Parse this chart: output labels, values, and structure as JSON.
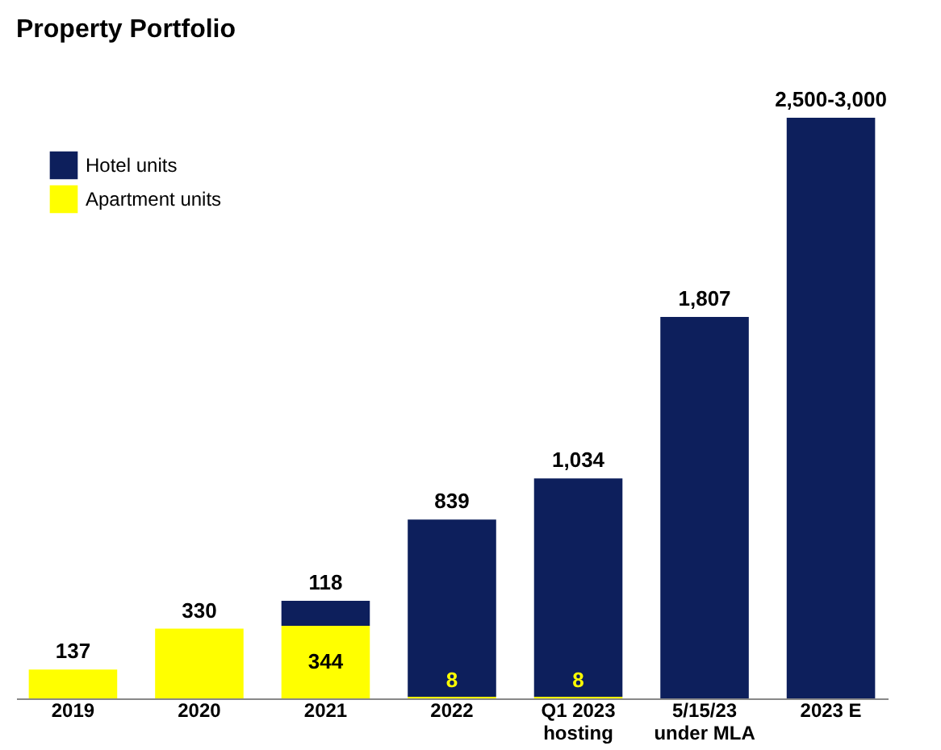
{
  "chart_data": {
    "type": "bar",
    "title": "Property Portfolio",
    "stacked": true,
    "legend": "top left",
    "grid": false,
    "categories": [
      "2019",
      "2020",
      "2021",
      "2022",
      "Q1 2023\nhosting",
      "5/15/23\nunder MLA",
      "2023 E"
    ],
    "series": [
      {
        "name": "Apartment units",
        "color": "#ffff00",
        "values": [
          137,
          330,
          344,
          8,
          8,
          null,
          null
        ],
        "value_labels": [
          "137",
          "330",
          "344",
          "8",
          "8",
          null,
          null
        ]
      },
      {
        "name": "Hotel units",
        "color": "#0d1f5c",
        "values": [
          null,
          null,
          118,
          839,
          1034,
          1807,
          2750
        ],
        "value_labels": [
          null,
          null,
          "118",
          "839",
          "1,034",
          "1,807",
          "2,500-3,000"
        ]
      }
    ]
  }
}
